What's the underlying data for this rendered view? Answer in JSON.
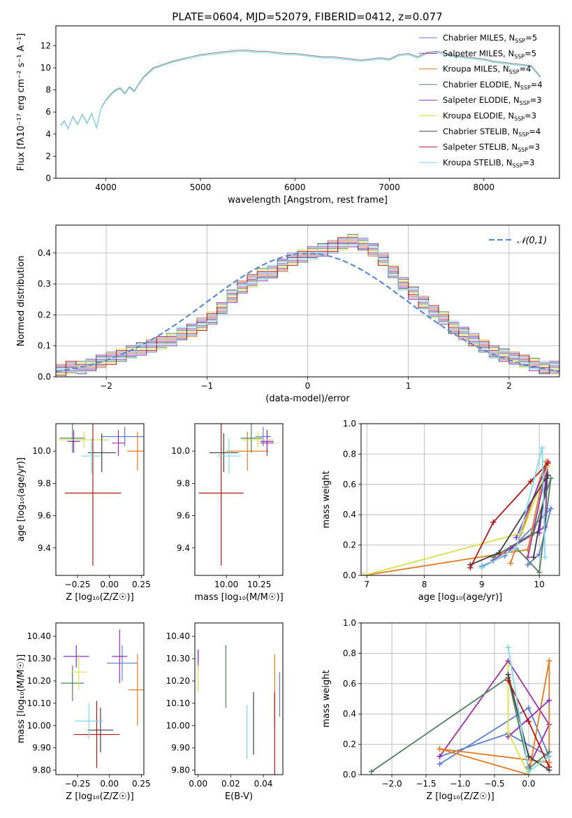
{
  "figure": {
    "title": "PLATE=0604, MJD=52079, FIBERID=0412, z=0.077"
  },
  "models": [
    {
      "name": "Chabrier MILES",
      "nssp": "5",
      "color": "#5b7fd6"
    },
    {
      "name": "Salpeter MILES",
      "nssp": "5",
      "color": "#9e2fa8"
    },
    {
      "name": "Kroupa MILES",
      "nssp": "4",
      "color": "#e07b20"
    },
    {
      "name": "Chabrier ELODIE",
      "nssp": "4",
      "color": "#4f7f5b"
    },
    {
      "name": "Salpeter ELODIE",
      "nssp": "3",
      "color": "#8a2fc8"
    },
    {
      "name": "Kroupa ELODIE",
      "nssp": "3",
      "color": "#d8df4a"
    },
    {
      "name": "Chabrier STELIB",
      "nssp": "4",
      "color": "#404040"
    },
    {
      "name": "Salpeter STELIB",
      "nssp": "3",
      "color": "#b01818"
    },
    {
      "name": "Kroupa STELIB",
      "nssp": "3",
      "color": "#7fd8e8"
    }
  ],
  "chart_data": [
    {
      "id": "spectrum",
      "type": "line",
      "xlabel": "wavelength [Angstrom, rest frame]",
      "ylabel": "Flux [fλ10⁻¹⁷ erg cm⁻² s⁻¹ A⁻¹]",
      "xlim": [
        3470,
        8800
      ],
      "ylim": [
        0,
        13.8
      ],
      "xticks": [
        4000,
        5000,
        6000,
        7000,
        8000
      ],
      "yticks": [
        0,
        2,
        4,
        6,
        8,
        10,
        12
      ],
      "legend_position": "right",
      "data_color": "#7f7f7f",
      "x": [
        3520,
        3560,
        3600,
        3650,
        3700,
        3750,
        3800,
        3850,
        3900,
        3950,
        4000,
        4050,
        4100,
        4150,
        4200,
        4250,
        4300,
        4350,
        4400,
        4450,
        4500,
        4600,
        4700,
        4800,
        4900,
        5000,
        5100,
        5200,
        5300,
        5400,
        5500,
        5600,
        5700,
        5800,
        5900,
        6000,
        6100,
        6200,
        6300,
        6400,
        6500,
        6600,
        6700,
        6800,
        6900,
        7000,
        7100,
        7200,
        7300,
        7400,
        7500,
        7600,
        7700,
        7800,
        7900,
        8000,
        8100,
        8200,
        8300,
        8400,
        8500,
        8600
      ],
      "y": [
        4.8,
        5.2,
        4.5,
        5.6,
        4.9,
        5.8,
        5.0,
        5.9,
        4.6,
        6.4,
        7.1,
        7.6,
        8.0,
        8.2,
        7.7,
        8.3,
        7.9,
        8.6,
        9.2,
        9.6,
        10.0,
        10.3,
        10.6,
        10.8,
        11.0,
        11.2,
        11.3,
        11.4,
        11.5,
        11.6,
        11.6,
        11.5,
        11.5,
        11.4,
        11.3,
        11.3,
        11.2,
        11.1,
        11.0,
        11.0,
        10.9,
        10.8,
        10.7,
        10.8,
        10.9,
        10.8,
        11.2,
        11.3,
        11.0,
        11.4,
        11.5,
        11.3,
        11.1,
        11.0,
        10.9,
        10.8,
        10.6,
        10.5,
        10.4,
        10.3,
        10.2,
        9.2
      ]
    },
    {
      "id": "residuals",
      "type": "step",
      "xlabel": "(data-model)/error",
      "ylabel": "Normed distribution",
      "xlim": [
        -2.5,
        2.5
      ],
      "ylim": [
        0,
        0.49
      ],
      "xticks": [
        -2,
        -1,
        0,
        1,
        2
      ],
      "yticks": [
        0.0,
        0.1,
        0.2,
        0.3,
        0.4
      ],
      "grid": true,
      "legend_label": "𝒩(0,1)",
      "legend_position": "top-right",
      "gauss_color": "#5b8bd6",
      "bin_start": -2.5,
      "bin_width": 0.1,
      "hist": [
        0.02,
        0.03,
        0.03,
        0.04,
        0.05,
        0.06,
        0.07,
        0.08,
        0.09,
        0.1,
        0.11,
        0.12,
        0.14,
        0.15,
        0.17,
        0.19,
        0.22,
        0.26,
        0.29,
        0.31,
        0.33,
        0.34,
        0.36,
        0.38,
        0.39,
        0.4,
        0.41,
        0.42,
        0.43,
        0.44,
        0.43,
        0.41,
        0.38,
        0.34,
        0.3,
        0.27,
        0.24,
        0.21,
        0.19,
        0.16,
        0.14,
        0.12,
        0.1,
        0.08,
        0.07,
        0.06,
        0.05,
        0.04,
        0.03,
        0.03
      ]
    },
    {
      "id": "age_vs_Z",
      "type": "errorbar",
      "xlabel": "Z [log₁₀(Z/Z☉)]",
      "ylabel": "age  [log₁₀(age/yr)]",
      "xlim": [
        -0.42,
        0.27
      ],
      "ylim": [
        9.23,
        10.17
      ],
      "xticks": [
        -0.25,
        0.0,
        0.25
      ],
      "yticks": [
        9.4,
        9.6,
        9.8,
        10.0
      ],
      "points": [
        {
          "x": 0.12,
          "xerr": 0.18,
          "y": 10.09,
          "yerr": 0.06
        },
        {
          "x": 0.07,
          "xerr": 0.05,
          "y": 10.05,
          "yerr": 0.08
        },
        {
          "x": 0.22,
          "xerr": 0.08,
          "y": 10.0,
          "yerr": 0.12
        },
        {
          "x": -0.29,
          "xerr": 0.1,
          "y": 10.08,
          "yerr": 0.09
        },
        {
          "x": -0.28,
          "xerr": 0.05,
          "y": 10.06,
          "yerr": 0.07
        },
        {
          "x": -0.2,
          "xerr": 0.2,
          "y": 10.07,
          "yerr": 0.05
        },
        {
          "x": -0.06,
          "xerr": 0.11,
          "y": 9.99,
          "yerr": 0.12
        },
        {
          "x": -0.13,
          "xerr": 0.22,
          "y": 9.74,
          "yerr": 0.45
        },
        {
          "x": -0.14,
          "xerr": 0.08,
          "y": 9.97,
          "yerr": 0.11
        }
      ]
    },
    {
      "id": "age_vs_mass",
      "type": "errorbar",
      "xlabel": "mass [log₁₀(M/M☉)]",
      "ylabel": "",
      "xlim": [
        9.76,
        10.43
      ],
      "ylim": [
        9.23,
        10.17
      ],
      "xticks": [
        10.0,
        10.25
      ],
      "yticks": [
        9.4,
        9.6,
        9.8,
        10.0
      ],
      "points": [
        {
          "x": 10.28,
          "xerr": 0.06,
          "y": 10.09,
          "yerr": 0.06
        },
        {
          "x": 10.31,
          "xerr": 0.05,
          "y": 10.05,
          "yerr": 0.08
        },
        {
          "x": 10.16,
          "xerr": 0.16,
          "y": 10.0,
          "yerr": 0.12
        },
        {
          "x": 10.19,
          "xerr": 0.08,
          "y": 10.08,
          "yerr": 0.09
        },
        {
          "x": 10.31,
          "xerr": 0.05,
          "y": 10.06,
          "yerr": 0.07
        },
        {
          "x": 10.24,
          "xerr": 0.12,
          "y": 10.07,
          "yerr": 0.05
        },
        {
          "x": 9.98,
          "xerr": 0.11,
          "y": 9.99,
          "yerr": 0.12
        },
        {
          "x": 9.96,
          "xerr": 0.17,
          "y": 9.74,
          "yerr": 0.45
        },
        {
          "x": 10.02,
          "xerr": 0.09,
          "y": 9.97,
          "yerr": 0.11
        }
      ]
    },
    {
      "id": "weights_vs_age",
      "type": "line",
      "xlabel": "age  [log₁₀(age/yr)]",
      "ylabel": "mass weight",
      "xlim": [
        6.9,
        10.35
      ],
      "ylim": [
        0.0,
        1.0
      ],
      "xticks": [
        7,
        8,
        9,
        10
      ],
      "yticks": [
        0.0,
        0.2,
        0.4,
        0.6,
        0.8,
        1.0
      ],
      "grid": true,
      "series": [
        {
          "x": [
            9.8,
            10.0,
            10.2,
            9.4,
            9.0
          ],
          "y": [
            0.07,
            0.14,
            0.44,
            0.13,
            0.06
          ]
        },
        {
          "x": [
            9.8,
            10.15,
            10.1,
            9.5,
            9.2
          ],
          "y": [
            0.12,
            0.75,
            0.32,
            0.18,
            0.1
          ]
        },
        {
          "x": [
            6.95,
            9.8,
            10.12,
            9.5
          ],
          "y": [
            0.0,
            0.17,
            0.75,
            0.08
          ]
        },
        {
          "x": [
            9.2,
            9.9,
            10.2,
            10.0,
            9.6
          ],
          "y": [
            0.12,
            0.28,
            0.64,
            0.02,
            0.18
          ]
        },
        {
          "x": [
            9.6,
            10.15,
            10.0
          ],
          "y": [
            0.25,
            0.74,
            0.28
          ]
        },
        {
          "x": [
            6.95,
            9.7,
            10.15
          ],
          "y": [
            0.0,
            0.28,
            0.72
          ]
        },
        {
          "x": [
            8.8,
            9.3,
            10.15,
            9.9
          ],
          "y": [
            0.07,
            0.15,
            0.66,
            0.12
          ]
        },
        {
          "x": [
            8.8,
            9.2,
            9.85,
            10.15
          ],
          "y": [
            0.05,
            0.35,
            0.62,
            0.74
          ]
        },
        {
          "x": [
            9.0,
            9.6,
            10.05,
            10.1
          ],
          "y": [
            0.05,
            0.18,
            0.84,
            0.12
          ]
        }
      ]
    },
    {
      "id": "mass_vs_Z",
      "type": "errorbar",
      "xlabel": "Z [log₁₀(Z/Z☉)]",
      "ylabel": "mass [log₁₀(M/M☉)]",
      "xlim": [
        -0.42,
        0.27
      ],
      "ylim": [
        9.78,
        10.46
      ],
      "xticks": [
        -0.25,
        0.0,
        0.25
      ],
      "yticks": [
        9.8,
        9.9,
        10.0,
        10.1,
        10.2,
        10.3,
        10.4
      ],
      "points": [
        {
          "x": 0.1,
          "xerr": 0.12,
          "y": 10.28,
          "yerr": 0.08
        },
        {
          "x": 0.08,
          "xerr": 0.06,
          "y": 10.31,
          "yerr": 0.12
        },
        {
          "x": 0.22,
          "xerr": 0.07,
          "y": 10.16,
          "yerr": 0.16
        },
        {
          "x": -0.29,
          "xerr": 0.09,
          "y": 10.19,
          "yerr": 0.08
        },
        {
          "x": -0.26,
          "xerr": 0.1,
          "y": 10.31,
          "yerr": 0.05
        },
        {
          "x": -0.24,
          "xerr": 0.06,
          "y": 10.24,
          "yerr": 0.08
        },
        {
          "x": -0.07,
          "xerr": 0.1,
          "y": 9.98,
          "yerr": 0.1
        },
        {
          "x": -0.1,
          "xerr": 0.18,
          "y": 9.96,
          "yerr": 0.15
        },
        {
          "x": -0.16,
          "xerr": 0.11,
          "y": 10.02,
          "yerr": 0.08
        }
      ]
    },
    {
      "id": "mass_vs_ebv",
      "type": "errorbar",
      "xlabel": "E(B-V)",
      "ylabel": "",
      "xlim": [
        -0.002,
        0.052
      ],
      "ylim": [
        9.78,
        10.46
      ],
      "xticks": [
        0.0,
        0.02,
        0.04
      ],
      "yticks": [
        9.8,
        9.9,
        10.0,
        10.1,
        10.2,
        10.3,
        10.4
      ],
      "points": [
        {
          "x": 0.05,
          "xerr": 0,
          "y": 10.14,
          "yerr": 0.1
        },
        {
          "x": 0.0,
          "xerr": 0,
          "y": 10.31,
          "yerr": 0.03
        },
        {
          "x": 0.047,
          "xerr": 0,
          "y": 10.16,
          "yerr": 0.16
        },
        {
          "x": 0.017,
          "xerr": 0,
          "y": 10.22,
          "yerr": 0.14
        },
        {
          "x": 0.0,
          "xerr": 0,
          "y": 10.3,
          "yerr": 0.04
        },
        {
          "x": 0.0,
          "xerr": 0,
          "y": 10.21,
          "yerr": 0.06
        },
        {
          "x": 0.034,
          "xerr": 0,
          "y": 10.01,
          "yerr": 0.14
        },
        {
          "x": 0.047,
          "xerr": 0,
          "y": 9.96,
          "yerr": 0.19
        },
        {
          "x": 0.03,
          "xerr": 0,
          "y": 9.97,
          "yerr": 0.12
        }
      ]
    },
    {
      "id": "weights_vs_Z",
      "type": "line",
      "xlabel": "Z [log₁₀(Z/Z☉)]",
      "ylabel": "mass weight",
      "xlim": [
        -2.45,
        0.45
      ],
      "ylim": [
        0.0,
        1.0
      ],
      "xticks": [
        -2.0,
        -1.5,
        -1.0,
        -0.5,
        0.0
      ],
      "yticks": [
        0.0,
        0.2,
        0.4,
        0.6,
        0.8,
        1.0
      ],
      "grid": true,
      "series": [
        {
          "x": [
            -1.3,
            0.0,
            0.3,
            -0.3,
            -1.3
          ],
          "y": [
            0.07,
            0.44,
            0.12,
            0.27,
            0.12
          ]
        },
        {
          "x": [
            -1.3,
            -0.3,
            0.3,
            0.0
          ],
          "y": [
            0.12,
            0.75,
            0.33,
            0.05
          ]
        },
        {
          "x": [
            -1.3,
            0.3,
            0.3,
            0.0,
            -1.3
          ],
          "y": [
            0.17,
            0.08,
            0.75,
            0.0,
            0.17
          ]
        },
        {
          "x": [
            -2.3,
            -0.3,
            0.0,
            0.3
          ],
          "y": [
            0.02,
            0.64,
            0.04,
            0.15
          ]
        },
        {
          "x": [
            -0.3,
            0.3
          ],
          "y": [
            0.25,
            0.49
          ]
        },
        {
          "x": [
            -0.3,
            -0.3,
            0.0
          ],
          "y": [
            0.72,
            0.28,
            0.0
          ]
        },
        {
          "x": [
            -0.3,
            0.0,
            0.3
          ],
          "y": [
            0.66,
            0.12,
            0.03
          ]
        },
        {
          "x": [
            -0.3,
            0.0,
            0.3
          ],
          "y": [
            0.62,
            0.35,
            0.05
          ]
        },
        {
          "x": [
            -0.3,
            0.0,
            0.3
          ],
          "y": [
            0.84,
            0.02,
            0.12
          ]
        }
      ]
    }
  ]
}
